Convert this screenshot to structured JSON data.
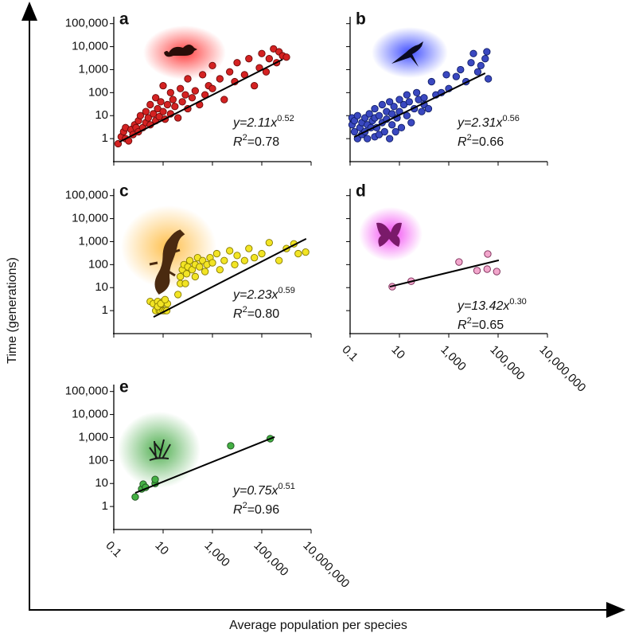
{
  "figure": {
    "y_label": "Time (generations)",
    "x_label": "Average population per species"
  },
  "chart_data": [
    {
      "type": "scatter",
      "panel_label": "a",
      "color": "#d42222",
      "edge_color": "#6a0a0a",
      "log_x": true,
      "log_y": true,
      "show_xtick_labels": false,
      "show_ytick_labels": true,
      "xlim": [
        0.1,
        10000000
      ],
      "ylim": [
        0.1,
        200000
      ],
      "xticks": [
        0.1,
        10,
        {
          "value": 1000,
          "label": "1,000"
        },
        {
          "value": 100000,
          "label": "100,000"
        },
        {
          "value": 10000000,
          "label": "10,000,000"
        }
      ],
      "yticks": [
        1,
        10,
        100,
        {
          "value": 1000,
          "label": "1,000"
        },
        {
          "value": 10000,
          "label": "10,000"
        },
        {
          "value": 100000,
          "label": "100,000"
        }
      ],
      "x": [
        0.15,
        0.2,
        0.25,
        0.3,
        0.3,
        0.4,
        0.5,
        0.6,
        0.7,
        0.8,
        1,
        1,
        1.2,
        1.5,
        2,
        2,
        2.5,
        3,
        3,
        4,
        5,
        5,
        6,
        7,
        8,
        10,
        10,
        12,
        15,
        20,
        20,
        25,
        30,
        40,
        50,
        60,
        80,
        100,
        100,
        150,
        200,
        300,
        400,
        500,
        700,
        1000,
        1000,
        2000,
        3000,
        5000,
        8000,
        10000,
        20000,
        30000,
        50000,
        80000,
        100000,
        150000,
        200000,
        300000,
        400000,
        500000,
        700000,
        1000000
      ],
      "y": [
        0.6,
        1.2,
        2,
        3,
        1,
        0.8,
        2.5,
        1.5,
        4,
        3,
        2,
        6,
        10,
        3,
        5,
        15,
        8,
        4,
        30,
        12,
        6,
        60,
        20,
        9,
        40,
        15,
        200,
        7,
        30,
        100,
        12,
        50,
        25,
        8,
        150,
        40,
        80,
        20,
        400,
        60,
        120,
        30,
        600,
        80,
        200,
        150,
        1500,
        400,
        50,
        800,
        300,
        2000,
        600,
        3000,
        200,
        1200,
        5000,
        800,
        3000,
        8000,
        2000,
        6000,
        4000,
        3500
      ],
      "fit": {
        "x": [
          0.17,
          690000
        ],
        "y": [
          0.72,
          2750
        ]
      },
      "equation": {
        "base": "y=2.11x",
        "exponent": "0.52"
      },
      "r_squared": {
        "symbol": "R",
        "power": "2",
        "value": "=0.78"
      }
    },
    {
      "type": "scatter",
      "panel_label": "b",
      "color": "#3a48c0",
      "edge_color": "#101e68",
      "log_x": true,
      "log_y": true,
      "show_xtick_labels": false,
      "show_ytick_labels": false,
      "xlim": [
        0.1,
        10000000
      ],
      "ylim": [
        0.1,
        200000
      ],
      "xticks": [
        0.1,
        10,
        {
          "value": 1000,
          "label": "1,000"
        },
        {
          "value": 100000,
          "label": "100,000"
        },
        {
          "value": 10000000,
          "label": "10,000,000"
        }
      ],
      "yticks": [
        1,
        10,
        100,
        {
          "value": 1000,
          "label": "1,000"
        },
        {
          "value": 10000,
          "label": "10,000"
        },
        {
          "value": 100000,
          "label": "100,000"
        }
      ],
      "x": [
        0.12,
        0.12,
        0.15,
        0.15,
        0.2,
        0.2,
        0.25,
        0.3,
        0.3,
        0.4,
        0.4,
        0.5,
        0.5,
        0.6,
        0.7,
        0.8,
        1,
        1,
        1,
        1.2,
        1.5,
        1.5,
        2,
        2,
        2.5,
        3,
        3,
        4,
        4,
        5,
        5,
        6,
        7,
        8,
        10,
        10,
        12,
        15,
        20,
        20,
        25,
        30,
        40,
        50,
        60,
        80,
        100,
        100,
        150,
        200,
        300,
        500,
        800,
        1000,
        2000,
        3000,
        5000,
        8000,
        10000,
        15000,
        20000,
        30000,
        35000,
        40000
      ],
      "y": [
        4,
        8,
        2,
        6,
        1,
        10,
        3,
        5,
        1.5,
        8,
        2,
        1,
        4,
        12,
        3,
        6,
        1.2,
        20,
        8,
        3,
        10,
        1.5,
        5,
        30,
        2,
        15,
        7,
        1,
        40,
        4,
        12,
        25,
        2,
        8,
        50,
        15,
        3,
        30,
        10,
        80,
        40,
        5,
        20,
        100,
        50,
        15,
        30,
        60,
        20,
        300,
        80,
        100,
        600,
        150,
        500,
        1000,
        300,
        2000,
        5000,
        800,
        1500,
        3000,
        6000,
        400
      ],
      "fit": {
        "x": [
          0.145,
          30000
        ],
        "y": [
          1.17,
          700
        ]
      },
      "equation": {
        "base": "y=2.31x",
        "exponent": "0.56"
      },
      "r_squared": {
        "symbol": "R",
        "power": "2",
        "value": "=0.66"
      }
    },
    {
      "type": "scatter",
      "panel_label": "c",
      "color": "#f2e424",
      "edge_color": "#857a00",
      "log_x": true,
      "log_y": true,
      "show_xtick_labels": false,
      "show_ytick_labels": true,
      "xlim": [
        0.1,
        10000000
      ],
      "ylim": [
        0.1,
        200000
      ],
      "xticks": [
        0.1,
        10,
        {
          "value": 1000,
          "label": "1,000"
        },
        {
          "value": 100000,
          "label": "100,000"
        },
        {
          "value": 10000000,
          "label": "10,000,000"
        }
      ],
      "yticks": [
        1,
        10,
        100,
        {
          "value": 1000,
          "label": "1,000"
        },
        {
          "value": 10000,
          "label": "10,000"
        },
        {
          "value": 100000,
          "label": "100,000"
        }
      ],
      "x": [
        3,
        4,
        5,
        6,
        7,
        8,
        9,
        10,
        10,
        12,
        14,
        15,
        6,
        8,
        12,
        40,
        50,
        50,
        60,
        70,
        80,
        90,
        100,
        120,
        150,
        200,
        200,
        250,
        300,
        400,
        500,
        600,
        800,
        1000,
        1500,
        2000,
        3000,
        5000,
        8000,
        10000,
        20000,
        30000,
        50000,
        100000,
        200000,
        500000,
        1000000,
        2000000,
        3000000,
        6000000
      ],
      "y": [
        2.5,
        2,
        1,
        2.5,
        1,
        1,
        2,
        1,
        2.5,
        1,
        1,
        2,
        1.5,
        2,
        3,
        5,
        30,
        15,
        60,
        100,
        15,
        40,
        80,
        150,
        60,
        100,
        30,
        200,
        80,
        150,
        50,
        100,
        200,
        120,
        300,
        60,
        150,
        400,
        100,
        250,
        150,
        500,
        200,
        300,
        900,
        150,
        500,
        800,
        300,
        350
      ],
      "fit": {
        "x": [
          4.1,
          6300000
        ],
        "y": [
          0.53,
          1330
        ]
      },
      "equation": {
        "base": "y=2.23x",
        "exponent": "0.59"
      },
      "r_squared": {
        "symbol": "R",
        "power": "2",
        "value": "=0.80"
      }
    },
    {
      "type": "scatter",
      "panel_label": "d",
      "color": "#f2a6cc",
      "edge_color": "#7a2a55",
      "log_x": true,
      "log_y": true,
      "show_xtick_labels": true,
      "show_ytick_labels": false,
      "xlim": [
        0.1,
        10000000
      ],
      "ylim": [
        0.1,
        200000
      ],
      "xticks": [
        0.1,
        10,
        {
          "value": 1000,
          "label": "1,000"
        },
        {
          "value": 100000,
          "label": "100,000"
        },
        {
          "value": 10000000,
          "label": "10,000,000"
        }
      ],
      "yticks": [
        1,
        10,
        100,
        {
          "value": 1000,
          "label": "1,000"
        },
        {
          "value": 10000,
          "label": "10,000"
        },
        {
          "value": 100000,
          "label": "100,000"
        }
      ],
      "x": [
        5.1,
        30,
        2600,
        14000,
        36000,
        38000,
        88000
      ],
      "y": [
        11,
        19,
        130,
        55,
        64,
        290,
        50
      ],
      "fit": {
        "x": [
          4.1,
          107000
        ],
        "y": [
          11,
          155
        ]
      },
      "equation": {
        "base": "y=13.42x",
        "exponent": "0.30"
      },
      "r_squared": {
        "symbol": "R",
        "power": "2",
        "value": "=0.65"
      }
    },
    {
      "type": "scatter",
      "panel_label": "e",
      "color": "#44b044",
      "edge_color": "#1e4e1e",
      "log_x": true,
      "log_y": true,
      "show_xtick_labels": true,
      "show_ytick_labels": true,
      "xlim": [
        0.1,
        10000000
      ],
      "ylim": [
        0.1,
        200000
      ],
      "xticks": [
        0.1,
        10,
        {
          "value": 1000,
          "label": "1,000"
        },
        {
          "value": 100000,
          "label": "100,000"
        },
        {
          "value": 10000000,
          "label": "10,000,000"
        }
      ],
      "yticks": [
        1,
        10,
        100,
        {
          "value": 1000,
          "label": "1,000"
        },
        {
          "value": 10000,
          "label": "10,000"
        },
        {
          "value": 100000,
          "label": "100,000"
        }
      ],
      "x": [
        0.74,
        1.35,
        1.56,
        1.95,
        4.75,
        4.75,
        5500,
        220000
      ],
      "y": [
        2.6,
        5.8,
        9.4,
        6.8,
        10,
        15,
        437,
        890
      ],
      "fit": {
        "x": [
          0.74,
          330000
        ],
        "y": [
          3.9,
          1050
        ]
      },
      "equation": {
        "base": "y=0.75x",
        "exponent": "0.51"
      },
      "r_squared": {
        "symbol": "R",
        "power": "2",
        "value": "=0.96"
      }
    }
  ]
}
